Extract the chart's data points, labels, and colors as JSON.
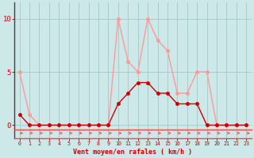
{
  "x_labels": [
    0,
    1,
    2,
    3,
    4,
    5,
    6,
    7,
    8,
    9,
    10,
    11,
    12,
    13,
    14,
    15,
    16,
    17,
    18,
    19,
    20,
    21,
    22,
    23
  ],
  "line1_y": [
    5,
    1,
    0,
    0,
    0,
    0,
    0,
    0,
    0,
    0,
    10,
    6,
    5,
    10,
    8,
    7,
    3,
    3,
    5,
    5,
    0,
    0,
    0,
    0
  ],
  "line2_y": [
    1,
    0,
    0,
    0,
    0,
    0,
    0,
    0,
    0,
    0,
    2,
    3,
    4,
    4,
    3,
    3,
    2,
    2,
    2,
    0,
    0,
    0,
    0,
    0
  ],
  "line1_color": "#ff9999",
  "line2_color": "#cc0000",
  "background_color": "#cce8e8",
  "grid_color": "#aacccc",
  "arrow_color": "#ff4444",
  "xlabel": "Vent moyen/en rafales ( km/h )",
  "yticks": [
    0,
    5,
    10
  ],
  "ylim": [
    -1.2,
    11.5
  ],
  "xlim": [
    -0.5,
    23.5
  ],
  "tick_color": "#cc0000",
  "xlabel_color": "#cc0000",
  "marker_size": 2.5,
  "line_width": 1.0
}
